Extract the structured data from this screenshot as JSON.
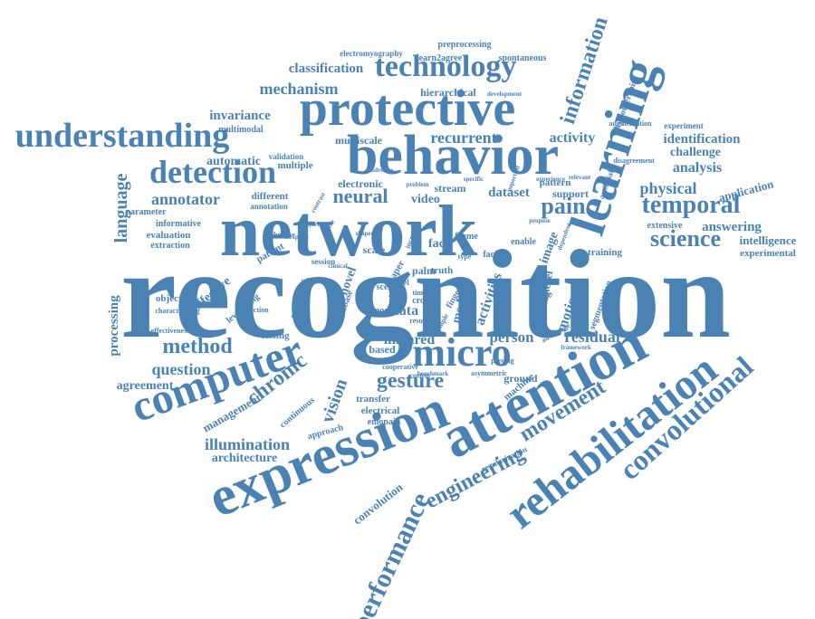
{
  "word_color": "#4a82b4",
  "background": "#ffffff",
  "words": [
    "recognition",
    "network",
    "behavior",
    "protective",
    "expression",
    "attention",
    "computer",
    "rehabilitation",
    "learning",
    "understanding",
    "technology",
    "detection",
    "convolutional",
    "micro",
    "temporal",
    "performance",
    "engineering",
    "movement",
    "information",
    "science",
    "method",
    "pain",
    "neural",
    "language",
    "chronic",
    "gesture",
    "vision",
    "question",
    "physical",
    "mechanism",
    "classification",
    "activity",
    "recurrent",
    "identification",
    "analysis",
    "illumination",
    "infrared",
    "residual",
    "person",
    "dataset",
    "annotator",
    "architecture",
    "processing",
    "agreement",
    "management",
    "answering",
    "intelligence",
    "experimental",
    "application",
    "challenge",
    "convolution",
    "invariance",
    "automatic",
    "multimodal",
    "multiple",
    "electronic",
    "multiscale",
    "hierarchical",
    "preprocessing",
    "spontaneous",
    "electromyography",
    "learn2agree",
    "video",
    "stream",
    "face",
    "facial",
    "frame",
    "palm",
    "truth",
    "activities",
    "modal",
    "multilevel",
    "motion",
    "image",
    "segmentation",
    "data",
    "model",
    "scale",
    "novel",
    "natural",
    "affective",
    "leveraging",
    "patient",
    "testing",
    "based",
    "transfer",
    "electrical",
    "emopain",
    "approach",
    "continuous",
    "machine",
    "ground",
    "enable",
    "training",
    "support",
    "pattern",
    "physiotherapist",
    "artificial",
    "experiment",
    "disagreement",
    "augmentation",
    "extensive",
    "objective",
    "characterizing",
    "interaction",
    "effectiveness",
    "evaluation",
    "extraction",
    "informative",
    "parameter",
    "different",
    "annotation",
    "validation",
    "technique",
    "session",
    "database",
    "scene",
    "sampling",
    "paper",
    "cross",
    "time",
    "simple",
    "finger",
    "result",
    "level",
    "cooperative",
    "regularization",
    "advantage",
    "asymmetric",
    "playing",
    "benchmark",
    "framework",
    "development",
    "problem",
    "specific",
    "propose",
    "content",
    "important",
    "experience",
    "relevant",
    "higher",
    "increase",
    "majority",
    "addresses",
    "type",
    "bodily",
    "related",
    "explicit",
    "clinical",
    "dependent",
    "shaped",
    "contrast"
  ]
}
